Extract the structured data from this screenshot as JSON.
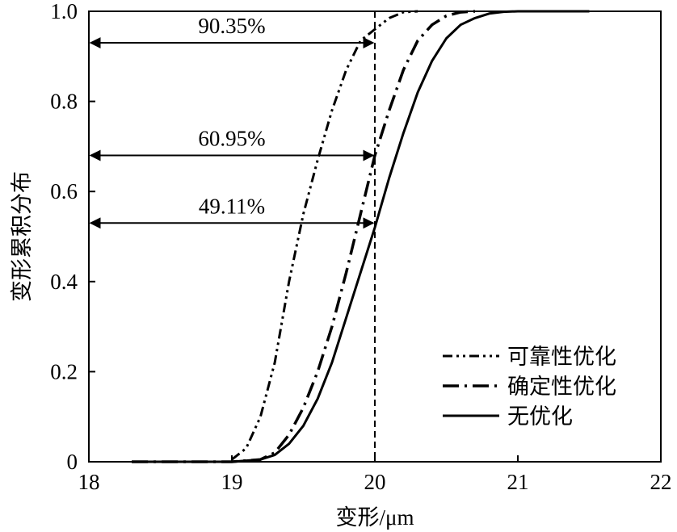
{
  "chart_data": {
    "type": "line",
    "xlabel": "变形/μm",
    "ylabel": "变形累积分布",
    "xlim": [
      18,
      22
    ],
    "ylim": [
      0,
      1.0
    ],
    "xticks": [
      "18",
      "19",
      "20",
      "21",
      "22"
    ],
    "yticks": [
      "0",
      "0.2",
      "0.4",
      "0.6",
      "0.8",
      "1.0"
    ],
    "grid": false,
    "legend_position": "bottom-right",
    "reference_line": {
      "x": 20,
      "style": "dashed"
    },
    "series": [
      {
        "name": "可靠性优化",
        "style": "dash-dot-dot",
        "width": 3,
        "x": [
          19.0,
          19.1,
          19.2,
          19.3,
          19.4,
          19.5,
          19.6,
          19.7,
          19.8,
          19.9,
          20.0,
          20.1,
          20.2,
          20.3
        ],
        "y": [
          0.005,
          0.03,
          0.1,
          0.22,
          0.4,
          0.55,
          0.67,
          0.78,
          0.87,
          0.935,
          0.96,
          0.985,
          0.998,
          1.0
        ]
      },
      {
        "name": "确定性优化",
        "style": "dash-dot",
        "width": 3.5,
        "x": [
          18.3,
          19.0,
          19.2,
          19.3,
          19.4,
          19.5,
          19.6,
          19.7,
          19.8,
          19.9,
          20.0,
          20.1,
          20.2,
          20.3,
          20.4,
          20.5,
          20.6,
          20.7
        ],
        "y": [
          0.0,
          0.0,
          0.005,
          0.02,
          0.06,
          0.12,
          0.2,
          0.3,
          0.42,
          0.55,
          0.68,
          0.78,
          0.87,
          0.935,
          0.97,
          0.99,
          0.998,
          1.0
        ]
      },
      {
        "name": "无优化",
        "style": "solid",
        "width": 3,
        "x": [
          18.3,
          19.0,
          19.2,
          19.3,
          19.4,
          19.5,
          19.6,
          19.7,
          19.8,
          19.9,
          20.0,
          20.1,
          20.2,
          20.3,
          20.4,
          20.5,
          20.6,
          20.7,
          20.8,
          20.9,
          21.0,
          21.5
        ],
        "y": [
          0.0,
          0.0,
          0.005,
          0.015,
          0.04,
          0.08,
          0.14,
          0.22,
          0.32,
          0.42,
          0.52,
          0.63,
          0.73,
          0.82,
          0.89,
          0.94,
          0.97,
          0.985,
          0.995,
          0.999,
          1.0,
          1.0
        ]
      }
    ],
    "annotations": [
      {
        "label": "90.35%",
        "y": 0.93,
        "x_start": 18,
        "x_end": 20
      },
      {
        "label": "60.95%",
        "y": 0.68,
        "x_start": 18,
        "x_end": 20
      },
      {
        "label": "49.11%",
        "y": 0.53,
        "x_start": 18,
        "x_end": 20
      }
    ]
  }
}
